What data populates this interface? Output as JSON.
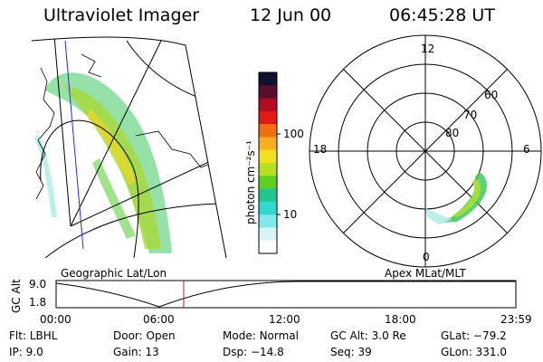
{
  "header": {
    "instrument": "Ultraviolet Imager",
    "date": "12 Jun 00",
    "time": "06:45:28 UT"
  },
  "colorbar": {
    "unit_label": "photon cm⁻²s⁻¹",
    "ticks": [
      "100",
      "10"
    ],
    "colors": [
      "#101030",
      "#5a0f30",
      "#b00a25",
      "#e01818",
      "#f07010",
      "#f8b020",
      "#f0e020",
      "#b8e020",
      "#60d020",
      "#20c890",
      "#30d8d0",
      "#80e8e8",
      "#d8f4f4",
      "#ffffff"
    ]
  },
  "left_panel": {
    "label": "Geographic Lat/Lon"
  },
  "right_panel": {
    "label": "Apex MLat/MLT",
    "lat_labels": [
      "80",
      "70",
      "60"
    ],
    "mlt_labels": {
      "top": "12",
      "left": "18",
      "right": "6",
      "bottom": "0"
    }
  },
  "altitude_strip": {
    "ylabel": "GC Alt",
    "yticks": [
      "9.0",
      "1.8"
    ],
    "xticks": [
      "00:00",
      "06:00",
      "12:00",
      "18:00",
      "23:59"
    ],
    "current_marker_color": "#b02020"
  },
  "info": {
    "row1": [
      {
        "label": "Flt:",
        "value": "LBHL"
      },
      {
        "label": "Door:",
        "value": "Open"
      },
      {
        "label": "Mode:",
        "value": "Normal"
      },
      {
        "label": "GC Alt:",
        "value": "3.0 Re"
      },
      {
        "label": "GLat:",
        "value": "−79.2"
      }
    ],
    "row2": [
      {
        "label": "IP:",
        "value": "9.0"
      },
      {
        "label": "Gain:",
        "value": "13"
      },
      {
        "label": "Dsp:",
        "value": "−14.8"
      },
      {
        "label": "Seq:",
        "value": "39"
      },
      {
        "label": "GLon:",
        "value": "331.0"
      }
    ]
  }
}
